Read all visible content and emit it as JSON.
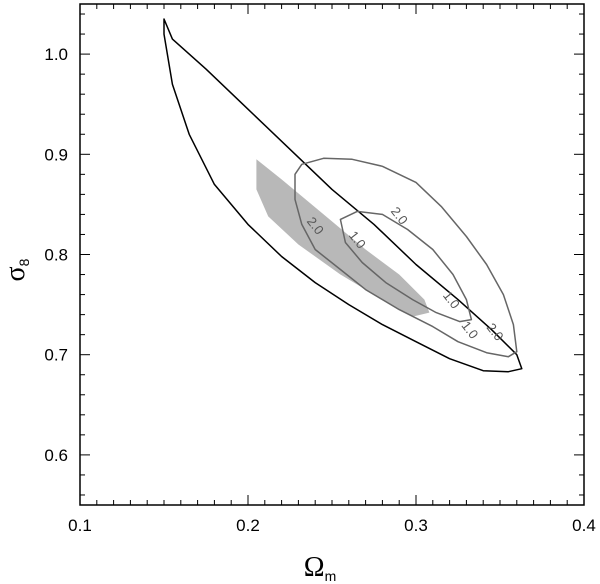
{
  "chart_data": {
    "type": "contour",
    "title": "",
    "xlabel": {
      "symbol": "Ω",
      "subscript": "m"
    },
    "ylabel": {
      "symbol": "σ",
      "subscript": "8"
    },
    "xlim": [
      0.1,
      0.4
    ],
    "ylim": [
      0.55,
      1.05
    ],
    "x_ticks": [
      {
        "value": 0.1,
        "label": "0.1"
      },
      {
        "value": 0.2,
        "label": "0.2"
      },
      {
        "value": 0.3,
        "label": "0.3"
      },
      {
        "value": 0.4,
        "label": "0.4"
      }
    ],
    "y_ticks": [
      {
        "value": 0.6,
        "label": "0.6"
      },
      {
        "value": 0.7,
        "label": "0.7"
      },
      {
        "value": 0.8,
        "label": "0.8"
      },
      {
        "value": 0.9,
        "label": "0.9"
      },
      {
        "value": 1.0,
        "label": "1.0"
      }
    ],
    "x_minor_step": 0.01,
    "y_minor_step": 0.02,
    "grid": false,
    "series": [
      {
        "style": "filled",
        "color": "#b8b8b8",
        "points": [
          [
            0.205,
            0.895
          ],
          [
            0.22,
            0.875
          ],
          [
            0.245,
            0.84
          ],
          [
            0.27,
            0.805
          ],
          [
            0.29,
            0.78
          ],
          [
            0.305,
            0.755
          ],
          [
            0.308,
            0.742
          ],
          [
            0.298,
            0.738
          ],
          [
            0.28,
            0.755
          ],
          [
            0.255,
            0.78
          ],
          [
            0.23,
            0.81
          ],
          [
            0.212,
            0.838
          ],
          [
            0.205,
            0.865
          ]
        ]
      },
      {
        "style": "line",
        "color": "#000000",
        "points": [
          [
            0.15,
            1.035
          ],
          [
            0.155,
            1.015
          ],
          [
            0.175,
            0.985
          ],
          [
            0.2,
            0.945
          ],
          [
            0.225,
            0.905
          ],
          [
            0.25,
            0.865
          ],
          [
            0.275,
            0.83
          ],
          [
            0.3,
            0.79
          ],
          [
            0.325,
            0.755
          ],
          [
            0.345,
            0.725
          ],
          [
            0.36,
            0.7
          ],
          [
            0.363,
            0.686
          ],
          [
            0.355,
            0.683
          ],
          [
            0.34,
            0.684
          ],
          [
            0.32,
            0.696
          ],
          [
            0.3,
            0.713
          ],
          [
            0.28,
            0.73
          ],
          [
            0.26,
            0.75
          ],
          [
            0.24,
            0.772
          ],
          [
            0.22,
            0.798
          ],
          [
            0.2,
            0.83
          ],
          [
            0.18,
            0.87
          ],
          [
            0.165,
            0.92
          ],
          [
            0.155,
            0.97
          ],
          [
            0.15,
            1.02
          ]
        ]
      },
      {
        "style": "line",
        "color": "#666666",
        "contour_label": "2.0",
        "points": [
          [
            0.228,
            0.88
          ],
          [
            0.232,
            0.89
          ],
          [
            0.245,
            0.896
          ],
          [
            0.262,
            0.895
          ],
          [
            0.28,
            0.888
          ],
          [
            0.3,
            0.872
          ],
          [
            0.315,
            0.848
          ],
          [
            0.33,
            0.818
          ],
          [
            0.342,
            0.79
          ],
          [
            0.352,
            0.76
          ],
          [
            0.358,
            0.73
          ],
          [
            0.36,
            0.703
          ],
          [
            0.355,
            0.698
          ],
          [
            0.342,
            0.702
          ],
          [
            0.325,
            0.713
          ],
          [
            0.31,
            0.728
          ],
          [
            0.29,
            0.745
          ],
          [
            0.27,
            0.765
          ],
          [
            0.255,
            0.785
          ],
          [
            0.24,
            0.805
          ],
          [
            0.232,
            0.83
          ],
          [
            0.228,
            0.855
          ]
        ]
      },
      {
        "style": "line",
        "color": "#666666",
        "contour_label": "1.0",
        "points": [
          [
            0.255,
            0.835
          ],
          [
            0.265,
            0.843
          ],
          [
            0.28,
            0.84
          ],
          [
            0.295,
            0.825
          ],
          [
            0.31,
            0.805
          ],
          [
            0.322,
            0.78
          ],
          [
            0.33,
            0.755
          ],
          [
            0.333,
            0.735
          ],
          [
            0.326,
            0.733
          ],
          [
            0.312,
            0.742
          ],
          [
            0.298,
            0.755
          ],
          [
            0.282,
            0.772
          ],
          [
            0.268,
            0.792
          ],
          [
            0.258,
            0.812
          ]
        ]
      }
    ],
    "annotations": [
      {
        "text": "2.0",
        "x": 0.238,
        "y": 0.826
      },
      {
        "text": "1.0",
        "x": 0.263,
        "y": 0.812
      },
      {
        "text": "2.0",
        "x": 0.288,
        "y": 0.836
      },
      {
        "text": "1.0",
        "x": 0.319,
        "y": 0.752
      },
      {
        "text": "1.0",
        "x": 0.33,
        "y": 0.722
      },
      {
        "text": "2.0",
        "x": 0.345,
        "y": 0.72
      }
    ]
  }
}
